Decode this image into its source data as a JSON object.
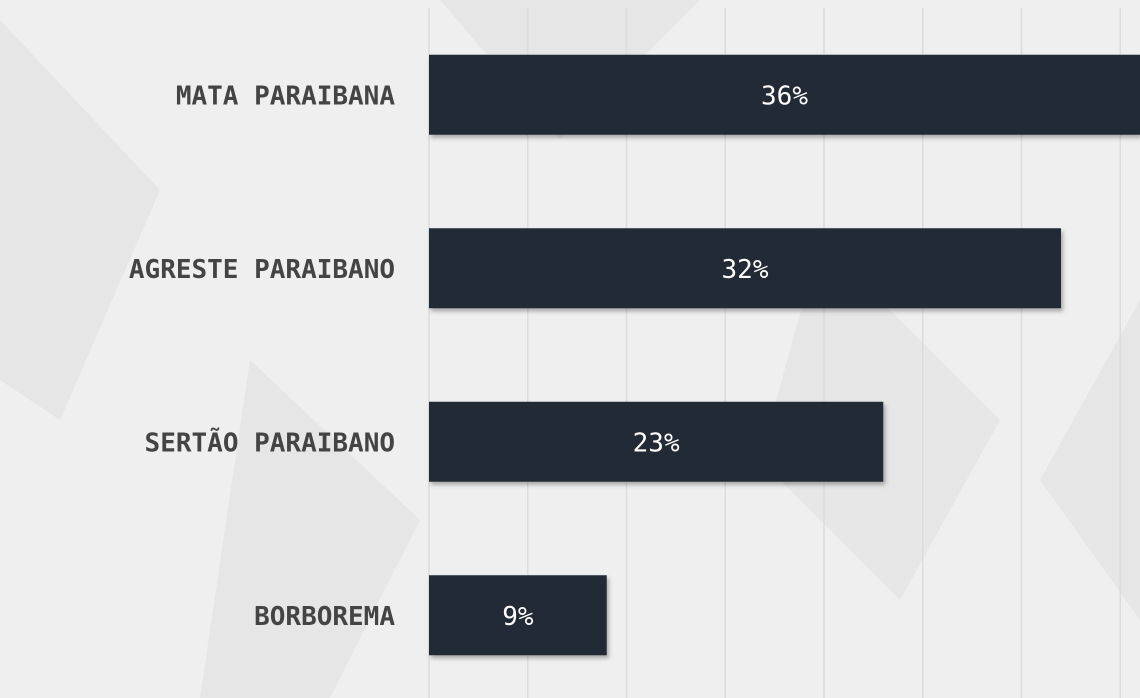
{
  "chart_data": {
    "type": "bar",
    "orientation": "horizontal",
    "categories": [
      "MATA PARAIBANA",
      "AGRESTE PARAIBANO",
      "SERTÃO PARAIBANO",
      "BORBOREMA"
    ],
    "values": [
      36,
      32,
      23,
      9
    ],
    "value_labels": [
      "36%",
      "32%",
      "23%",
      "9%"
    ],
    "color": "#232a35",
    "xlim": [
      0,
      36
    ],
    "xticks": [
      0,
      5,
      10,
      15,
      20,
      25,
      30,
      35
    ],
    "grid": true
  }
}
